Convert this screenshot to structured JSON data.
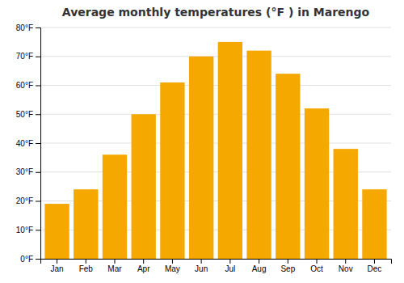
{
  "chart_data": {
    "type": "bar",
    "title": "Average monthly temperatures (°F ) in Marengo",
    "categories": [
      "Jan",
      "Feb",
      "Mar",
      "Apr",
      "May",
      "Jun",
      "Jul",
      "Aug",
      "Sep",
      "Oct",
      "Nov",
      "Dec"
    ],
    "values": [
      19,
      24,
      36,
      50,
      61,
      70,
      75,
      72,
      64,
      52,
      38,
      24
    ],
    "color": "#F5A800",
    "ylim": [
      0,
      80
    ],
    "yticks": [
      {
        "value": 0,
        "label": "0°F"
      },
      {
        "value": 10,
        "label": "10°F"
      },
      {
        "value": 20,
        "label": "20°F"
      },
      {
        "value": 30,
        "label": "30°F"
      },
      {
        "value": 40,
        "label": "40°F"
      },
      {
        "value": 50,
        "label": "50°F"
      },
      {
        "value": 60,
        "label": "60°F"
      },
      {
        "value": 70,
        "label": "70°F"
      },
      {
        "value": 80,
        "label": "80°F"
      }
    ],
    "grid": true
  }
}
